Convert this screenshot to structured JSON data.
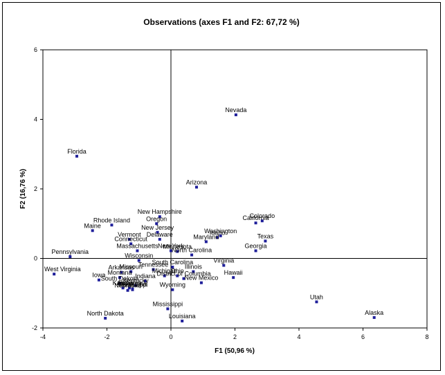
{
  "chart_data": {
    "type": "scatter",
    "title": "Observations (axes F1 and F2: 67,72 %)",
    "xlabel": "F1 (50,96 %)",
    "ylabel": "F2 (16,76 %)",
    "xlim": [
      -4,
      8
    ],
    "ylim": [
      -2,
      6
    ],
    "xticks": [
      -4,
      -2,
      0,
      2,
      4,
      6,
      8
    ],
    "yticks": [
      -2,
      0,
      2,
      4,
      6
    ],
    "grid": false,
    "legend": "none",
    "point_color": "#1f1f9a",
    "points": [
      {
        "label": "Nevada",
        "x": 2.03,
        "y": 4.13
      },
      {
        "label": "Florida",
        "x": -2.94,
        "y": 2.94
      },
      {
        "label": "Arizona",
        "x": 0.8,
        "y": 2.05
      },
      {
        "label": "New Hampshire",
        "x": -0.35,
        "y": 1.2
      },
      {
        "label": "Oregon",
        "x": -0.45,
        "y": 1.0
      },
      {
        "label": "Rhode Island",
        "x": -1.85,
        "y": 0.96
      },
      {
        "label": "Maine",
        "x": -2.45,
        "y": 0.8
      },
      {
        "label": "New Jersey",
        "x": -0.42,
        "y": 0.75
      },
      {
        "label": "Delaware",
        "x": -0.35,
        "y": 0.55
      },
      {
        "label": "Vermont",
        "x": -1.3,
        "y": 0.55
      },
      {
        "label": "Connecticut",
        "x": -1.25,
        "y": 0.42
      },
      {
        "label": "Massachusetts",
        "x": -1.05,
        "y": 0.22
      },
      {
        "label": "Colorado",
        "x": 2.85,
        "y": 1.08
      },
      {
        "label": "California",
        "x": 2.65,
        "y": 1.02
      },
      {
        "label": "Washington",
        "x": 1.55,
        "y": 0.65
      },
      {
        "label": "Idaho",
        "x": 1.45,
        "y": 0.6
      },
      {
        "label": "Maryland",
        "x": 1.1,
        "y": 0.48
      },
      {
        "label": "Texas",
        "x": 2.95,
        "y": 0.5
      },
      {
        "label": "Georgia",
        "x": 2.65,
        "y": 0.22
      },
      {
        "label": "New York",
        "x": 0.0,
        "y": 0.22
      },
      {
        "label": "Minnesota",
        "x": 0.2,
        "y": 0.2
      },
      {
        "label": "North Carolina",
        "x": 0.65,
        "y": 0.1
      },
      {
        "label": "Pennsylvania",
        "x": -3.15,
        "y": 0.05
      },
      {
        "label": "Wisconsin",
        "x": -1.0,
        "y": -0.06
      },
      {
        "label": "Virginia",
        "x": 1.65,
        "y": -0.2
      },
      {
        "label": "South Carolina",
        "x": 0.05,
        "y": -0.25
      },
      {
        "label": "Tennessee",
        "x": -0.55,
        "y": -0.32
      },
      {
        "label": "Illinois",
        "x": 0.7,
        "y": -0.38
      },
      {
        "label": "Arkansas",
        "x": -1.55,
        "y": -0.4
      },
      {
        "label": "Missouri",
        "x": -1.25,
        "y": -0.38
      },
      {
        "label": "Michigan",
        "x": -0.2,
        "y": -0.5
      },
      {
        "label": "District of Columbia",
        "x": 0.4,
        "y": -0.58
      },
      {
        "label": "Ohio",
        "x": 0.2,
        "y": -0.5
      },
      {
        "label": "Montana",
        "x": -1.6,
        "y": -0.55
      },
      {
        "label": "Hawaii",
        "x": 1.95,
        "y": -0.55
      },
      {
        "label": "West Virginia",
        "x": -3.65,
        "y": -0.45
      },
      {
        "label": "Iowa",
        "x": -2.25,
        "y": -0.62
      },
      {
        "label": "Indiana",
        "x": -0.8,
        "y": -0.65
      },
      {
        "label": "New Mexico",
        "x": 0.95,
        "y": -0.7
      },
      {
        "label": "South Dakota",
        "x": -1.6,
        "y": -0.72
      },
      {
        "label": "Kentucky",
        "x": -1.1,
        "y": -0.78
      },
      {
        "label": "Alabama",
        "x": -1.3,
        "y": -0.85
      },
      {
        "label": "Kansas",
        "x": -1.5,
        "y": -0.85
      },
      {
        "label": "Oklahoma",
        "x": -1.2,
        "y": -0.88
      },
      {
        "label": "Nebraska",
        "x": -1.35,
        "y": -0.92
      },
      {
        "label": "Mississippi",
        "x": -1.2,
        "y": -0.9
      },
      {
        "label": "Wyoming",
        "x": 0.05,
        "y": -0.9
      },
      {
        "label": "Utah",
        "x": 4.55,
        "y": -1.25
      },
      {
        "label": "Mississippi",
        "x": -0.1,
        "y": -1.45
      },
      {
        "label": "North Dakota",
        "x": -2.05,
        "y": -1.72
      },
      {
        "label": "Louisiana",
        "x": 0.35,
        "y": -1.8
      },
      {
        "label": "Alaska",
        "x": 6.35,
        "y": -1.7
      }
    ]
  }
}
